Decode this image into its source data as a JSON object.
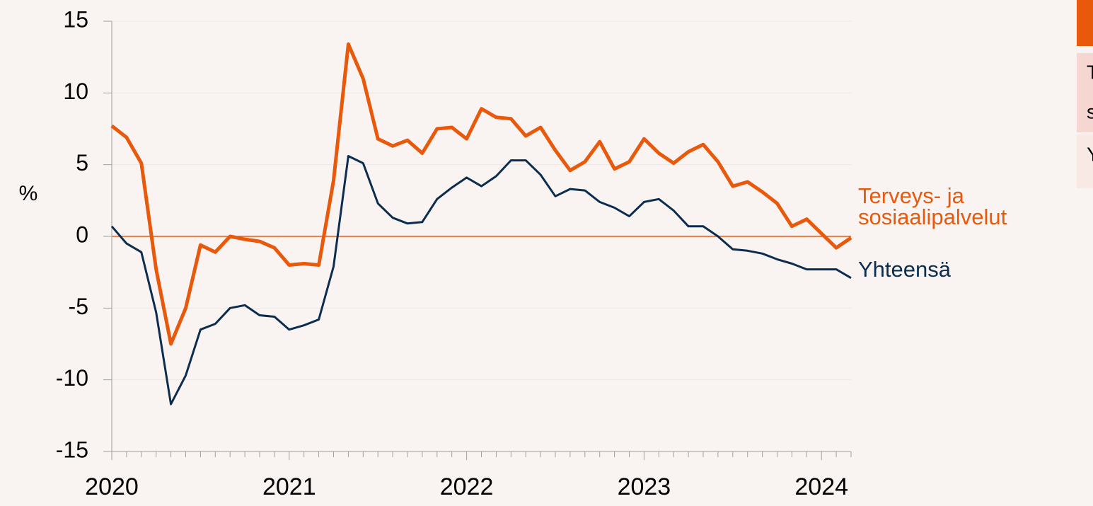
{
  "chart_data": {
    "type": "line",
    "y_axis_label": "%",
    "categories": [
      "2020",
      null,
      null,
      null,
      null,
      null,
      null,
      null,
      null,
      null,
      null,
      null,
      "2021",
      null,
      null,
      null,
      null,
      null,
      null,
      null,
      null,
      null,
      null,
      null,
      "2022",
      null,
      null,
      null,
      null,
      null,
      null,
      null,
      null,
      null,
      null,
      null,
      "2023",
      null,
      null,
      null,
      null,
      null,
      null,
      null,
      null,
      null,
      null,
      null,
      "2024",
      null,
      null
    ],
    "series": [
      {
        "name": "Terveys- ja sosiaalipalvelut",
        "color": "#e8590c",
        "values": [
          7.7,
          6.9,
          5.1,
          -2.3,
          -7.5,
          -5.0,
          -0.6,
          -1.1,
          0.0,
          -0.2,
          -0.35,
          -0.8,
          -2.0,
          -1.9,
          -2.0,
          3.9,
          13.4,
          11.0,
          6.8,
          6.3,
          6.7,
          5.8,
          7.5,
          7.6,
          6.8,
          8.9,
          8.3,
          8.2,
          7.0,
          7.6,
          6.0,
          4.6,
          5.2,
          6.6,
          4.7,
          5.2,
          6.8,
          5.8,
          5.1,
          5.9,
          6.4,
          5.2,
          3.5,
          3.8,
          3.1,
          2.3,
          0.7,
          1.2,
          0.2,
          -0.8,
          -0.1
        ]
      },
      {
        "name": "Yhteensä",
        "color": "#0c2d4e",
        "values": [
          0.7,
          -0.5,
          -1.1,
          -5.3,
          -11.7,
          -9.7,
          -6.5,
          -6.1,
          -5.0,
          -4.8,
          -5.5,
          -5.6,
          -6.5,
          -6.2,
          -5.8,
          -2.1,
          5.6,
          5.1,
          2.3,
          1.3,
          0.9,
          1.0,
          2.6,
          3.4,
          4.1,
          3.5,
          4.2,
          5.3,
          5.3,
          4.3,
          2.8,
          3.3,
          3.2,
          2.4,
          2.0,
          1.4,
          2.4,
          2.6,
          1.8,
          0.7,
          0.7,
          0.0,
          -0.9,
          -1.0,
          -1.2,
          -1.6,
          -1.9,
          -2.3,
          -2.3,
          -2.3,
          -2.9
        ]
      }
    ],
    "ylim": [
      -15,
      15
    ],
    "yticks": [
      -15,
      -10,
      -5,
      0,
      5,
      10,
      15
    ],
    "grid": true,
    "zero_line_color": "#e8590c"
  },
  "side_panel": {
    "texts": [
      "T",
      "s",
      "Y"
    ]
  }
}
